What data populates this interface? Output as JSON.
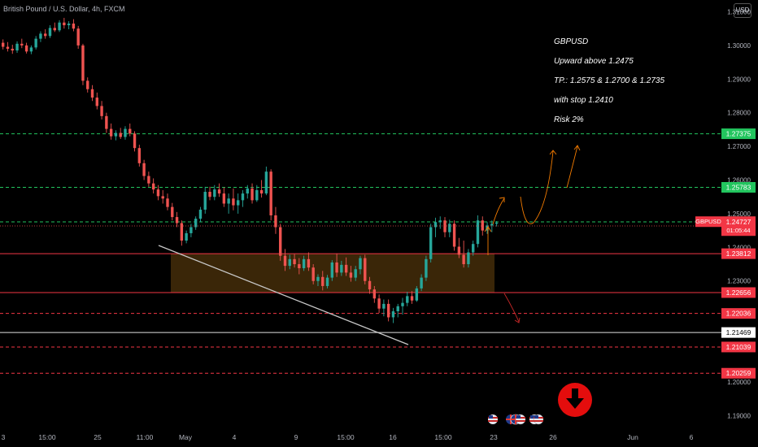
{
  "header": {
    "symbol_title": "British Pound / U.S. Dollar, 4h, FXCM",
    "currency_button": "USD"
  },
  "annotation": {
    "lines": [
      "GBPUSD",
      "Upward above 1.2475",
      "TP.:  1.2575  &  1.2700 & 1.2735",
      "with stop 1.2410",
      "Risk 2%"
    ]
  },
  "chart_data": {
    "type": "candlestick",
    "symbol": "GBPUSD",
    "timeframe": "4h",
    "ylim": [
      1.1855,
      1.3135
    ],
    "y_ticks": [
      "1.31000",
      "1.30000",
      "1.29000",
      "1.28000",
      "1.27000",
      "1.26000",
      "1.25000",
      "1.24000",
      "1.23000",
      "1.22000",
      "1.21000",
      "1.20000",
      "1.19000"
    ],
    "x_ticks": [
      "3",
      "15:00",
      "25",
      "11:00",
      "May",
      "4",
      "9",
      "15:00",
      "16",
      "15:00",
      "23",
      "26",
      "Jun",
      "6"
    ],
    "price_labels": [
      {
        "text": "1.27375",
        "value": 1.27375,
        "color": "#22c55e",
        "line": "dashed-green"
      },
      {
        "text": "1.25783",
        "value": 1.25783,
        "color": "#22c55e",
        "line": "dashed-green"
      },
      {
        "text": "1.24758",
        "value": 1.24758,
        "color": "#22c55e",
        "line": "dashed-green"
      },
      {
        "text": "1.23812",
        "value": 1.23812,
        "color": "#f23645",
        "line": "solid-red"
      },
      {
        "text": "1.22656",
        "value": 1.22656,
        "color": "#f23645",
        "line": "solid-red"
      },
      {
        "text": "1.22036",
        "value": 1.22036,
        "color": "#f23645",
        "line": "dashed-red"
      },
      {
        "text": "1.21469",
        "value": 1.21469,
        "color": "#ffffff",
        "line": "solid-white"
      },
      {
        "text": "1.21039",
        "value": 1.21039,
        "color": "#f23645",
        "line": "dashed-red"
      },
      {
        "text": "1.20259",
        "value": 1.20259,
        "color": "#f23645",
        "line": "dashed-red"
      }
    ],
    "current_price": {
      "symbol": "GBPUSD",
      "price": "1.24727",
      "countdown": "01:05:44",
      "value": 1.24727
    },
    "zone": {
      "top": 1.23812,
      "bottom": 1.22656,
      "color": "#3a2608"
    },
    "up_color": "#26a69a",
    "down_color": "#ef5350",
    "candles": [
      [
        1.3008,
        1.3018,
        1.2988,
        1.2996
      ],
      [
        1.2996,
        1.301,
        1.2982,
        1.299
      ],
      [
        1.299,
        1.3002,
        1.2975,
        1.2985
      ],
      [
        1.2985,
        1.3012,
        1.2978,
        1.3005
      ],
      [
        1.3005,
        1.302,
        1.2992,
        1.3
      ],
      [
        1.3,
        1.3008,
        1.2976,
        1.2982
      ],
      [
        1.2982,
        1.3,
        1.2974,
        1.2994
      ],
      [
        1.2994,
        1.3028,
        1.2988,
        1.302
      ],
      [
        1.302,
        1.3042,
        1.301,
        1.3035
      ],
      [
        1.3035,
        1.3048,
        1.302,
        1.3028
      ],
      [
        1.3028,
        1.306,
        1.3022,
        1.3052
      ],
      [
        1.3052,
        1.3068,
        1.304,
        1.3045
      ],
      [
        1.3045,
        1.3075,
        1.304,
        1.3068
      ],
      [
        1.3068,
        1.3082,
        1.305,
        1.306
      ],
      [
        1.306,
        1.3072,
        1.3048,
        1.3065
      ],
      [
        1.3065,
        1.3078,
        1.3042,
        1.305
      ],
      [
        1.305,
        1.3058,
        1.299,
        1.3
      ],
      [
        1.3,
        1.3005,
        1.2882,
        1.2895
      ],
      [
        1.2895,
        1.2905,
        1.286,
        1.287
      ],
      [
        1.287,
        1.2882,
        1.2835,
        1.2845
      ],
      [
        1.2845,
        1.286,
        1.281,
        1.282
      ],
      [
        1.282,
        1.2835,
        1.278,
        1.279
      ],
      [
        1.279,
        1.28,
        1.274,
        1.2752
      ],
      [
        1.2752,
        1.2768,
        1.272,
        1.273
      ],
      [
        1.273,
        1.2748,
        1.2718,
        1.274
      ],
      [
        1.274,
        1.2755,
        1.2722,
        1.2728
      ],
      [
        1.2728,
        1.276,
        1.272,
        1.2752
      ],
      [
        1.2752,
        1.2768,
        1.273,
        1.2738
      ],
      [
        1.2738,
        1.2745,
        1.2685,
        1.2695
      ],
      [
        1.2695,
        1.2705,
        1.264,
        1.265
      ],
      [
        1.265,
        1.266,
        1.26,
        1.2612
      ],
      [
        1.2612,
        1.2625,
        1.258,
        1.259
      ],
      [
        1.259,
        1.2605,
        1.256,
        1.2572
      ],
      [
        1.2572,
        1.2585,
        1.254,
        1.2552
      ],
      [
        1.2552,
        1.257,
        1.253,
        1.2545
      ],
      [
        1.2545,
        1.256,
        1.251,
        1.252
      ],
      [
        1.252,
        1.2532,
        1.248,
        1.249
      ],
      [
        1.249,
        1.2505,
        1.246,
        1.2472
      ],
      [
        1.2472,
        1.248,
        1.2405,
        1.242
      ],
      [
        1.242,
        1.245,
        1.2412,
        1.2442
      ],
      [
        1.2442,
        1.247,
        1.243,
        1.246
      ],
      [
        1.246,
        1.2492,
        1.2452,
        1.2485
      ],
      [
        1.2485,
        1.252,
        1.2475,
        1.2512
      ],
      [
        1.2512,
        1.258,
        1.25,
        1.2565
      ],
      [
        1.2565,
        1.258,
        1.254,
        1.255
      ],
      [
        1.255,
        1.2585,
        1.254,
        1.2572
      ],
      [
        1.2572,
        1.259,
        1.255,
        1.256
      ],
      [
        1.256,
        1.2578,
        1.252,
        1.253
      ],
      [
        1.253,
        1.256,
        1.25,
        1.2545
      ],
      [
        1.2545,
        1.2575,
        1.251,
        1.2525
      ],
      [
        1.2525,
        1.256,
        1.25,
        1.254
      ],
      [
        1.254,
        1.257,
        1.252,
        1.256
      ],
      [
        1.256,
        1.2585,
        1.2545,
        1.2575
      ],
      [
        1.2575,
        1.259,
        1.253,
        1.254
      ],
      [
        1.254,
        1.2585,
        1.2535,
        1.257
      ],
      [
        1.257,
        1.26,
        1.2548,
        1.256
      ],
      [
        1.256,
        1.264,
        1.2555,
        1.2625
      ],
      [
        1.2625,
        1.2632,
        1.248,
        1.2495
      ],
      [
        1.2495,
        1.252,
        1.244,
        1.246
      ],
      [
        1.246,
        1.247,
        1.236,
        1.2375
      ],
      [
        1.2375,
        1.2395,
        1.233,
        1.2345
      ],
      [
        1.2345,
        1.2378,
        1.2335,
        1.2365
      ],
      [
        1.2365,
        1.238,
        1.234,
        1.235
      ],
      [
        1.235,
        1.2368,
        1.232,
        1.2338
      ],
      [
        1.2338,
        1.2375,
        1.233,
        1.2365
      ],
      [
        1.2365,
        1.2385,
        1.233,
        1.234
      ],
      [
        1.234,
        1.235,
        1.229,
        1.23
      ],
      [
        1.23,
        1.232,
        1.2285,
        1.2312
      ],
      [
        1.2312,
        1.233,
        1.2272,
        1.2285
      ],
      [
        1.2285,
        1.2318,
        1.2278,
        1.231
      ],
      [
        1.231,
        1.2362,
        1.23,
        1.2355
      ],
      [
        1.2355,
        1.2382,
        1.2312,
        1.2325
      ],
      [
        1.2325,
        1.236,
        1.2315,
        1.2348
      ],
      [
        1.2348,
        1.237,
        1.2315,
        1.2325
      ],
      [
        1.2325,
        1.2345,
        1.2298,
        1.231
      ],
      [
        1.231,
        1.2345,
        1.23,
        1.2335
      ],
      [
        1.2335,
        1.2375,
        1.232,
        1.2368
      ],
      [
        1.2368,
        1.2378,
        1.229,
        1.23
      ],
      [
        1.23,
        1.2312,
        1.2262,
        1.2275
      ],
      [
        1.2275,
        1.2285,
        1.2235,
        1.2248
      ],
      [
        1.2248,
        1.226,
        1.2205,
        1.2218
      ],
      [
        1.2218,
        1.2245,
        1.2195,
        1.2232
      ],
      [
        1.2232,
        1.2245,
        1.218,
        1.2192
      ],
      [
        1.2192,
        1.222,
        1.2175,
        1.221
      ],
      [
        1.221,
        1.2232,
        1.2192,
        1.2225
      ],
      [
        1.2225,
        1.225,
        1.22,
        1.2235
      ],
      [
        1.2235,
        1.2268,
        1.2225,
        1.2255
      ],
      [
        1.2255,
        1.227,
        1.2232,
        1.2242
      ],
      [
        1.2242,
        1.2285,
        1.2238,
        1.2278
      ],
      [
        1.2278,
        1.232,
        1.227,
        1.231
      ],
      [
        1.231,
        1.2375,
        1.23,
        1.2365
      ],
      [
        1.2365,
        1.247,
        1.2355,
        1.246
      ],
      [
        1.246,
        1.2488,
        1.243,
        1.2475
      ],
      [
        1.2475,
        1.2492,
        1.2455,
        1.248
      ],
      [
        1.248,
        1.249,
        1.243,
        1.2445
      ],
      [
        1.2445,
        1.2482,
        1.243,
        1.247
      ],
      [
        1.247,
        1.248,
        1.239,
        1.2402
      ],
      [
        1.2402,
        1.2428,
        1.2368,
        1.2378
      ],
      [
        1.2378,
        1.242,
        1.234,
        1.235
      ],
      [
        1.235,
        1.2395,
        1.234,
        1.2385
      ],
      [
        1.2385,
        1.242,
        1.2375,
        1.241
      ],
      [
        1.241,
        1.2495,
        1.24,
        1.248
      ],
      [
        1.248,
        1.2492,
        1.2435,
        1.245
      ],
      [
        1.245,
        1.2475,
        1.244,
        1.2465
      ],
      [
        1.2465,
        1.248,
        1.2445,
        1.247
      ],
      [
        1.247,
        1.2478,
        1.2462,
        1.2473
      ]
    ]
  },
  "footer": {
    "event_icons": [
      "us-flag-icon",
      "uk-flag-icon",
      "uk-flag-icon",
      "us-flag-icon",
      "us-flag-icon",
      "us-flag-icon"
    ],
    "arrow_icon": "down-arrow-icon"
  }
}
